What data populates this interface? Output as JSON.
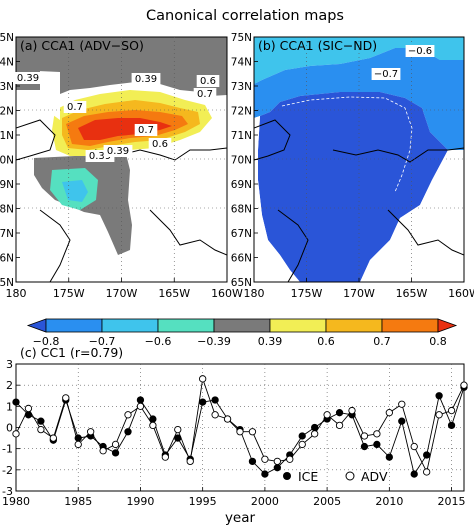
{
  "figure": {
    "title": "Canonical correlation maps"
  },
  "colors": {
    "contour_levels": [
      "#2a55d8",
      "#2a8ff0",
      "#3fc4ec",
      "#55e0c0",
      "#7a7a7a",
      "#f2ee55",
      "#f5b81e",
      "#f57a10",
      "#e83010"
    ],
    "land_line": "#000000",
    "ice_series": "#000000",
    "adv_series": "#000000"
  },
  "chart_data": [
    {
      "type": "heatmap",
      "panel_label": "(a) CCA1 (ADV−SO)",
      "x_ticks": [
        "180",
        "175W",
        "170W",
        "165W",
        "160W"
      ],
      "y_ticks": [
        "75N",
        "74N",
        "73N",
        "72N",
        "71N",
        "70N",
        "69N",
        "68N",
        "67N",
        "66N",
        "65N"
      ],
      "xlim": [
        -180,
        -160
      ],
      "ylim": [
        65,
        75
      ],
      "contour_labels": [
        "0.39",
        "0.39",
        "0.6",
        "0.7",
        "0.7",
        "0.7",
        "0.6",
        "0.39",
        "0.39"
      ]
    },
    {
      "type": "heatmap",
      "panel_label": "(b) CCA1 (SIC−ND)",
      "x_ticks": [
        "180",
        "175W",
        "170W",
        "165W",
        "160W"
      ],
      "y_ticks": [
        "75N",
        "74N",
        "73N",
        "72N",
        "71N",
        "70N",
        "69N",
        "68N",
        "67N",
        "66N",
        "65N"
      ],
      "xlim": [
        -180,
        -160
      ],
      "ylim": [
        65,
        75
      ],
      "contour_labels": [
        "−0.6",
        "−0.7"
      ]
    },
    {
      "type": "colorbar",
      "tick_labels": [
        "−0.8",
        "−0.7",
        "−0.6",
        "−0.39",
        "0.39",
        "0.6",
        "0.7",
        "0.8"
      ]
    },
    {
      "type": "line",
      "panel_label": "(c) CC1 (r=0.79)",
      "xlabel": "year",
      "ylabel": "",
      "xlim": [
        1980,
        2016
      ],
      "ylim": [
        -3,
        3
      ],
      "x_ticks": [
        1980,
        1985,
        1990,
        1995,
        2000,
        2005,
        2010,
        2015
      ],
      "y_ticks": [
        -3,
        -2,
        -1,
        0,
        1,
        2,
        3
      ],
      "x": [
        1980,
        1981,
        1982,
        1983,
        1984,
        1985,
        1986,
        1987,
        1988,
        1989,
        1990,
        1991,
        1992,
        1993,
        1994,
        1995,
        1996,
        1997,
        1998,
        1999,
        2000,
        2001,
        2002,
        2003,
        2004,
        2005,
        2006,
        2007,
        2008,
        2009,
        2010,
        2011,
        2012,
        2013,
        2014,
        2015,
        2016
      ],
      "series": [
        {
          "name": "ICE",
          "marker": "filled-circle",
          "values": [
            1.2,
            0.6,
            0.3,
            -0.6,
            1.3,
            -0.5,
            -0.4,
            -0.9,
            -1.2,
            -0.2,
            1.3,
            0.4,
            -1.3,
            -0.5,
            -1.5,
            1.2,
            1.3,
            0.4,
            -0.1,
            -1.6,
            -2.2,
            -1.9,
            -1.3,
            -0.4,
            0.0,
            0.4,
            0.7,
            0.6,
            -0.9,
            -0.8,
            -1.4,
            0.3,
            -2.2,
            -1.3,
            1.5,
            0.1,
            1.9
          ]
        },
        {
          "name": "ADV",
          "marker": "open-circle",
          "values": [
            -0.3,
            0.9,
            -0.1,
            -0.5,
            1.4,
            -0.8,
            -0.2,
            -1.1,
            -0.8,
            0.6,
            1.0,
            0.1,
            -1.4,
            -0.1,
            -1.6,
            2.3,
            0.6,
            0.4,
            -0.2,
            -0.2,
            -1.5,
            -1.6,
            -1.5,
            -0.8,
            -0.3,
            0.6,
            0.1,
            0.8,
            -0.4,
            -0.3,
            0.7,
            1.1,
            -0.9,
            -2.1,
            0.6,
            0.8,
            2.0
          ]
        }
      ]
    }
  ]
}
